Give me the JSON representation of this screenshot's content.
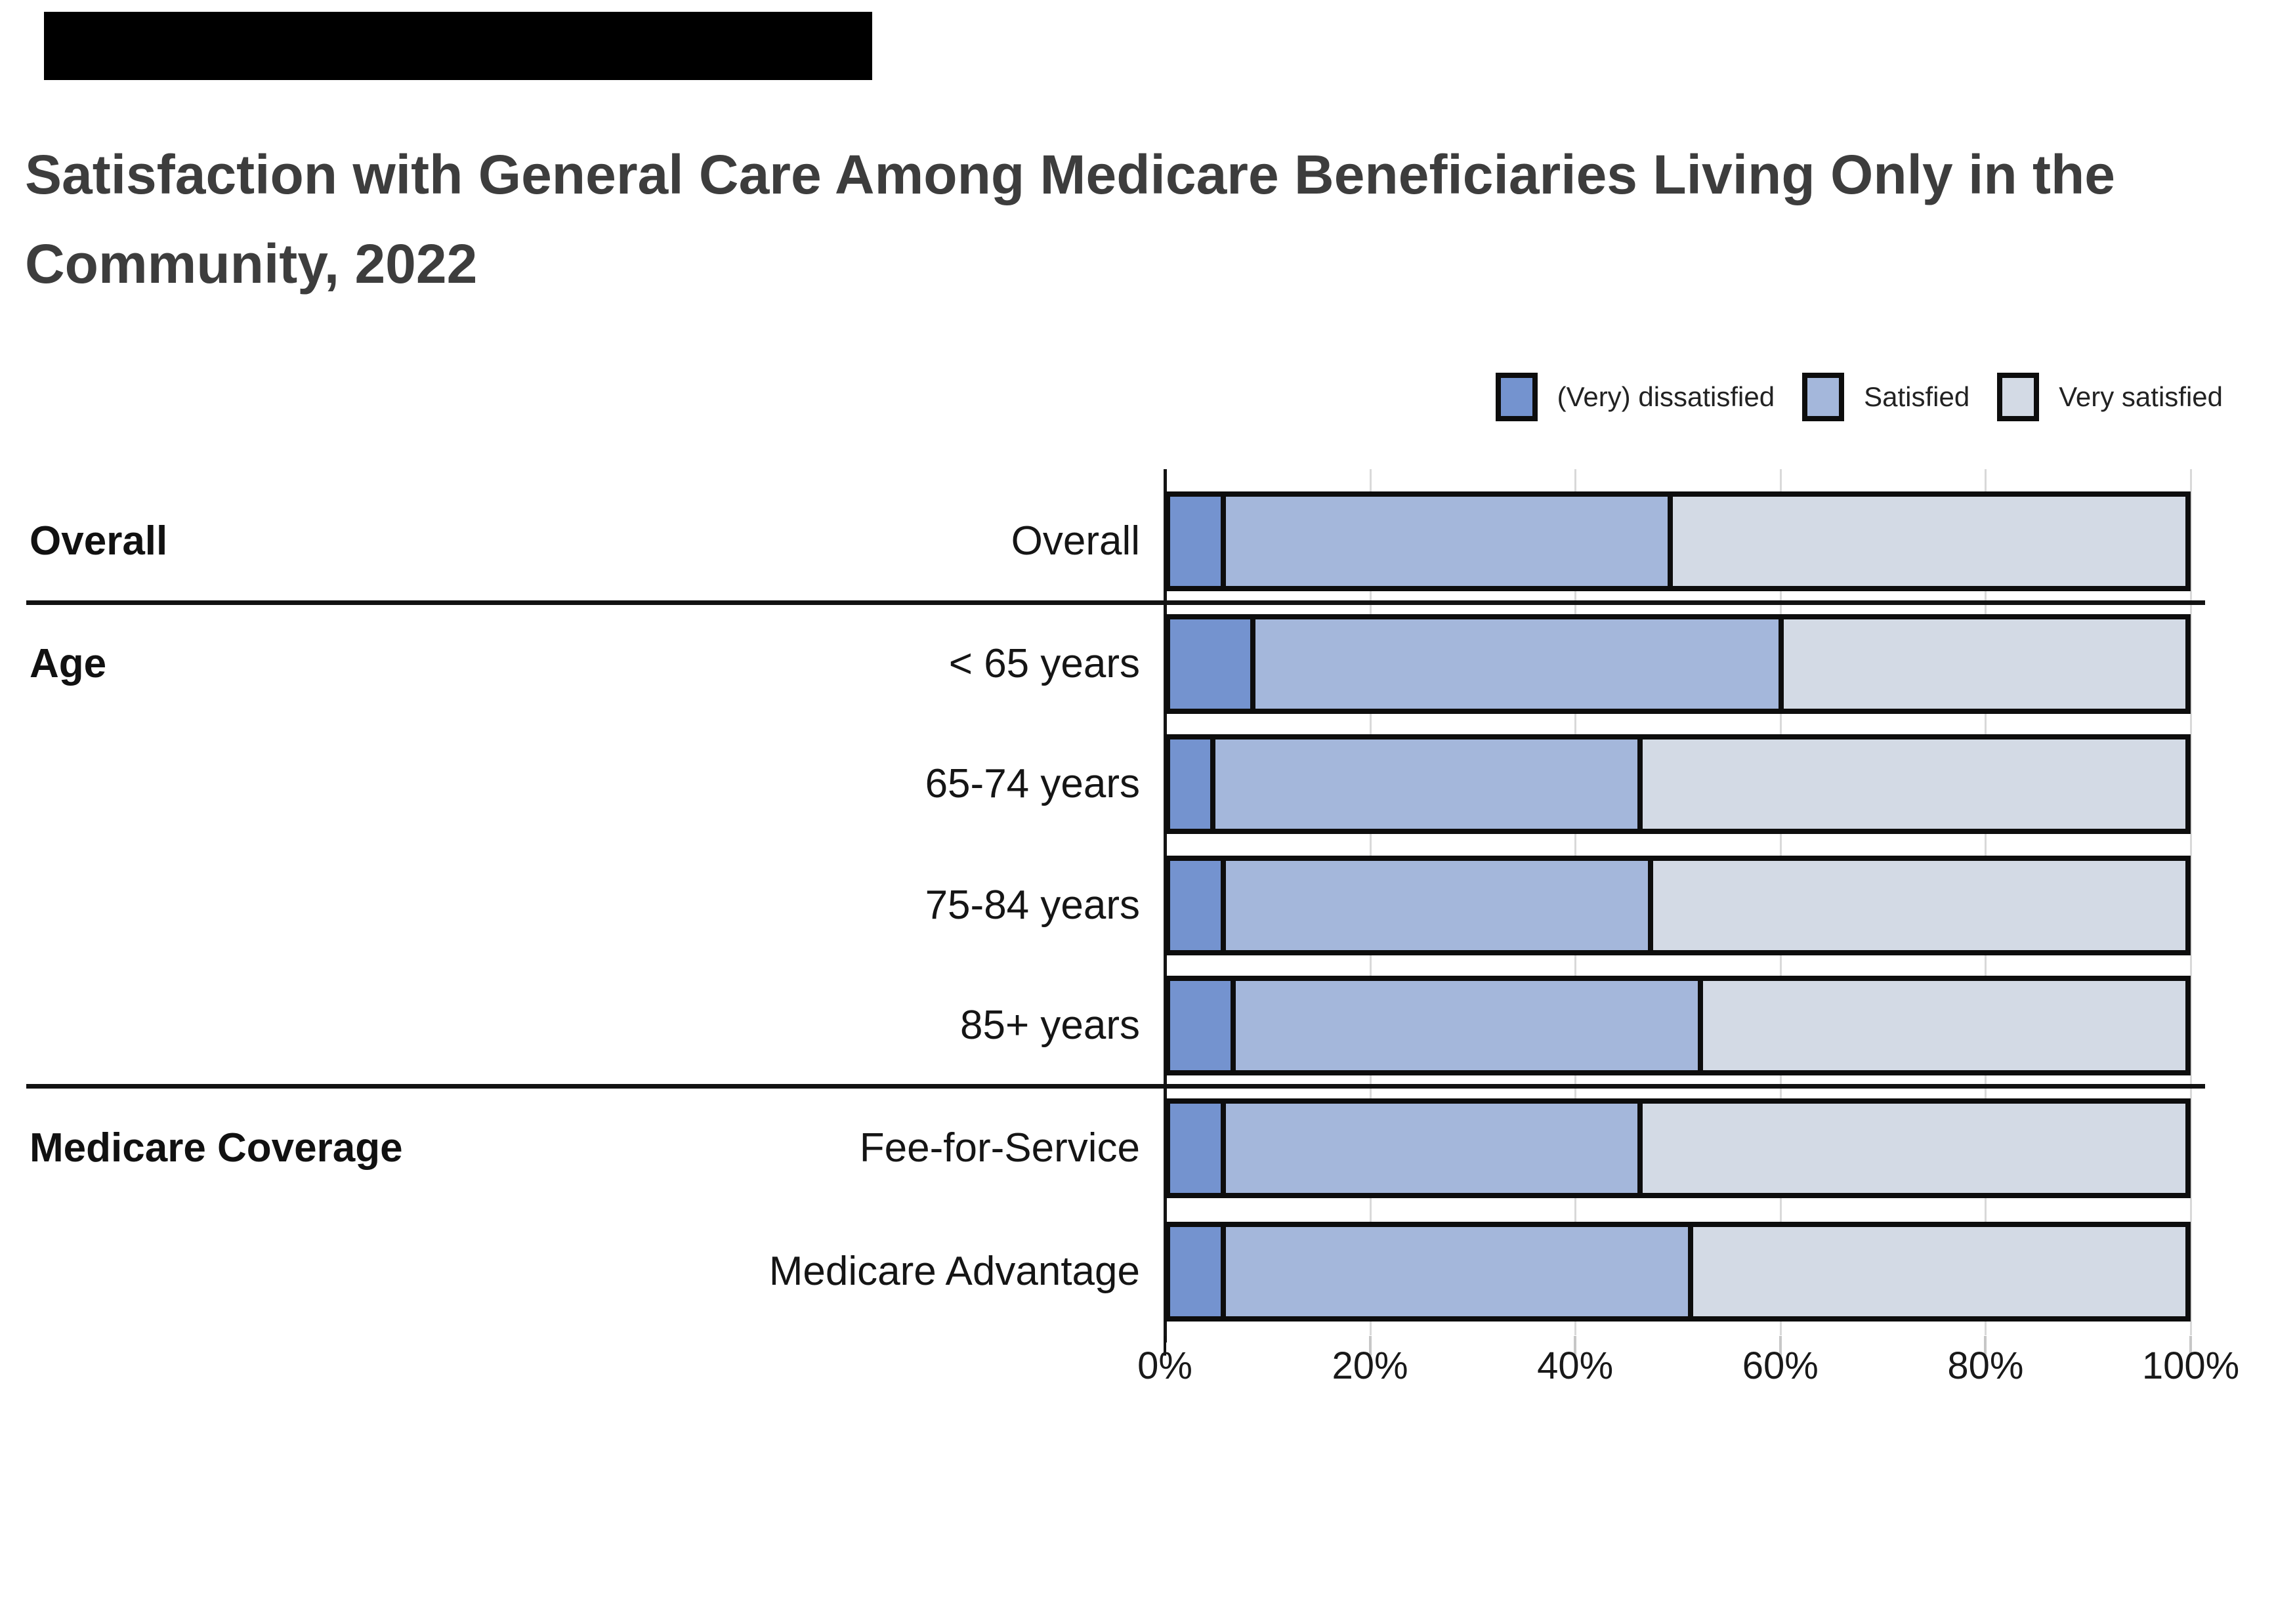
{
  "title": "Satisfaction with General Care Among Medicare Beneficiaries Living Only in the Community, 2022",
  "top_bar_color": "#000000",
  "legend": {
    "items": [
      {
        "label": "(Very) dissatisfied",
        "color": "#7493cf"
      },
      {
        "label": "Satisfied",
        "color": "#a4b7db"
      },
      {
        "label": "Very satisfied",
        "color": "#d3dae5"
      }
    ]
  },
  "chart_data": {
    "type": "bar",
    "variant": "horizontal_stacked_100_percent",
    "title": "Satisfaction with General Care Among Medicare Beneficiaries Living Only in the Community, 2022",
    "series_names": [
      "(Very) dissatisfied",
      "Satisfied",
      "Very satisfied"
    ],
    "series_colors": [
      "#7493cf",
      "#a4b7db",
      "#d3dae5"
    ],
    "groups": [
      {
        "label": "Overall",
        "rows": [
          {
            "category": "Overall",
            "values": [
              5,
              44,
              51
            ]
          }
        ]
      },
      {
        "label": "Age",
        "rows": [
          {
            "category": "< 65 years",
            "values": [
              8,
              52,
              40
            ]
          },
          {
            "category": "65-74 years",
            "values": [
              4,
              42,
              54
            ]
          },
          {
            "category": "75-84 years",
            "values": [
              5,
              42,
              53
            ]
          },
          {
            "category": "85+ years",
            "values": [
              6,
              46,
              48
            ]
          }
        ]
      },
      {
        "label": "Medicare Coverage",
        "rows": [
          {
            "category": "Fee-for-Service",
            "values": [
              5,
              41,
              54
            ]
          },
          {
            "category": "Medicare Advantage",
            "values": [
              5,
              46,
              49
            ]
          }
        ]
      }
    ],
    "x_axis": {
      "tick_labels": [
        "0%",
        "20%",
        "40%",
        "60%",
        "80%",
        "100%"
      ],
      "range": [
        0,
        100
      ],
      "units": "percent",
      "gridlines": true
    },
    "legend_position": "top-right",
    "grid": "vertical-light-gray",
    "bar_border_color": "#0d0d0d"
  }
}
